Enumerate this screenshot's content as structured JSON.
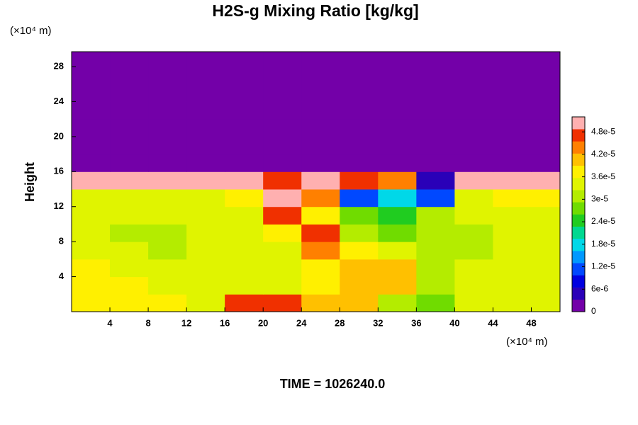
{
  "chart_data": {
    "type": "contour",
    "title": "H2S-g Mixing Ratio [kg/kg]",
    "y_label": "Height",
    "y_unit": "(×10⁴ m)",
    "x_unit": "(×10⁴ m)",
    "footer": "TIME = 1026240.0",
    "x": [
      2,
      6,
      10,
      14,
      18,
      22,
      26,
      30,
      34,
      38,
      42,
      46,
      50
    ],
    "y": [
      1,
      3,
      5,
      7,
      9,
      11,
      13,
      15,
      17,
      19,
      21,
      23,
      25,
      27,
      29
    ],
    "z": [
      [
        3.8e-05,
        3.7e-05,
        3.6e-05,
        3.5e-05,
        4.8e-05,
        4.6e-05,
        4.2e-05,
        4e-05,
        3e-05,
        2.8e-05,
        3.3e-05,
        3.4e-05,
        3.4e-05
      ],
      [
        3.8e-05,
        3.6e-05,
        3.4e-05,
        3.4e-05,
        3.4e-05,
        3.3e-05,
        3.8e-05,
        4.2e-05,
        4e-05,
        3e-05,
        3.4e-05,
        3.4e-05,
        3.5e-05
      ],
      [
        3.8e-05,
        3.5e-05,
        3.3e-05,
        3.4e-05,
        3.4e-05,
        3.3e-05,
        3.6e-05,
        4e-05,
        4e-05,
        3.2e-05,
        3.3e-05,
        3.5e-05,
        3.5e-05
      ],
      [
        3.5e-05,
        3.3e-05,
        3.1e-05,
        3.4e-05,
        3.4e-05,
        3.3e-05,
        4.4e-05,
        3.6e-05,
        3.4e-05,
        3e-05,
        3.2e-05,
        3.4e-05,
        3.4e-05
      ],
      [
        3.4e-05,
        3.2e-05,
        3e-05,
        3.3e-05,
        3.4e-05,
        3.6e-05,
        4.8e-05,
        3.2e-05,
        2.9e-05,
        3e-05,
        3.2e-05,
        3.4e-05,
        3.4e-05
      ],
      [
        3.3e-05,
        3.3e-05,
        3.3e-05,
        3.3e-05,
        3.4e-05,
        4.8e-05,
        3.6e-05,
        2.6e-05,
        2.4e-05,
        3e-05,
        3.3e-05,
        3.3e-05,
        3.3e-05
      ],
      [
        3.4e-05,
        3.5e-05,
        3.5e-05,
        3.4e-05,
        3.6e-05,
        5e-05,
        4.4e-05,
        1.2e-05,
        1.8e-05,
        1e-05,
        3.4e-05,
        3.6e-05,
        3.6e-05
      ],
      [
        5e-05,
        5e-05,
        5e-05,
        5e-05,
        5e-05,
        4.6e-05,
        5e-05,
        4.8e-05,
        4.4e-05,
        6e-06,
        5e-05,
        5e-05,
        5e-05
      ],
      [
        0,
        0,
        0,
        0,
        0,
        0,
        0,
        0,
        0,
        0,
        0,
        0,
        0
      ],
      [
        0,
        0,
        0,
        0,
        0,
        0,
        0,
        0,
        0,
        0,
        0,
        0,
        0
      ],
      [
        0,
        0,
        0,
        0,
        0,
        0,
        0,
        0,
        0,
        0,
        0,
        0,
        0
      ],
      [
        0,
        0,
        0,
        0,
        0,
        0,
        0,
        0,
        0,
        0,
        0,
        0,
        0
      ],
      [
        0,
        0,
        0,
        0,
        0,
        0,
        0,
        0,
        0,
        0,
        0,
        0,
        0
      ],
      [
        0,
        0,
        0,
        0,
        0,
        0,
        0,
        0,
        0,
        0,
        0,
        0,
        0
      ],
      [
        0,
        0,
        0,
        0,
        0,
        0,
        0,
        0,
        0,
        0,
        0,
        0,
        0
      ]
    ],
    "xlim": [
      0,
      51
    ],
    "ylim": [
      0,
      29.7
    ],
    "xticks": [
      4,
      8,
      12,
      16,
      20,
      24,
      28,
      32,
      36,
      40,
      44,
      48
    ],
    "yticks": [
      4,
      8,
      12,
      16,
      20,
      24,
      28
    ],
    "zlim": [
      0,
      5.2e-05
    ],
    "zticks": [
      0,
      {
        "value": 6e-06,
        "label": "6e-6"
      },
      {
        "value": 1.2e-05,
        "label": "1.2e-5"
      },
      {
        "value": 1.8e-05,
        "label": "1.8e-5"
      },
      {
        "value": 2.4e-05,
        "label": "2.4e-5"
      },
      {
        "value": 3e-05,
        "label": "3e-5"
      },
      {
        "value": 3.6e-05,
        "label": "3.6e-5"
      },
      {
        "value": 4.2e-05,
        "label": "4.2e-5"
      },
      {
        "value": 4.8e-05,
        "label": "4.8e-5"
      }
    ],
    "colors": [
      "#7300a8",
      "#2a00b8",
      "#0000e0",
      "#0048ff",
      "#0098ff",
      "#00d8e8",
      "#00d890",
      "#20cc20",
      "#70dc00",
      "#b4ec00",
      "#e0f400",
      "#fff000",
      "#ffc000",
      "#ff8000",
      "#f03000",
      "#ffb0b0"
    ]
  }
}
